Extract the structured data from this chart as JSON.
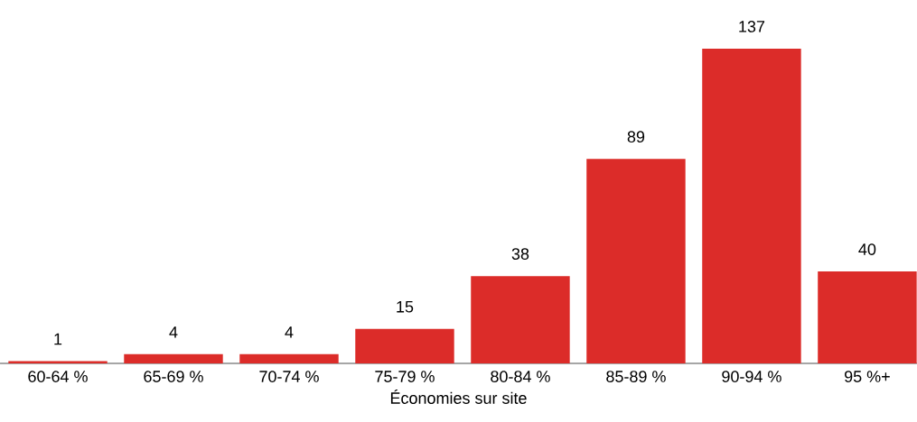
{
  "chart_data": {
    "type": "bar",
    "xlabel": "Économies sur site",
    "categories": [
      "60-64 %",
      "65-69 %",
      "70-74 %",
      "75-79 %",
      "80-84 %",
      "85-89 %",
      "90-94 %",
      "95 %+"
    ],
    "values": [
      1,
      4,
      4,
      15,
      38,
      89,
      137,
      40
    ],
    "color": "#dc2c29",
    "data_labels": true
  }
}
